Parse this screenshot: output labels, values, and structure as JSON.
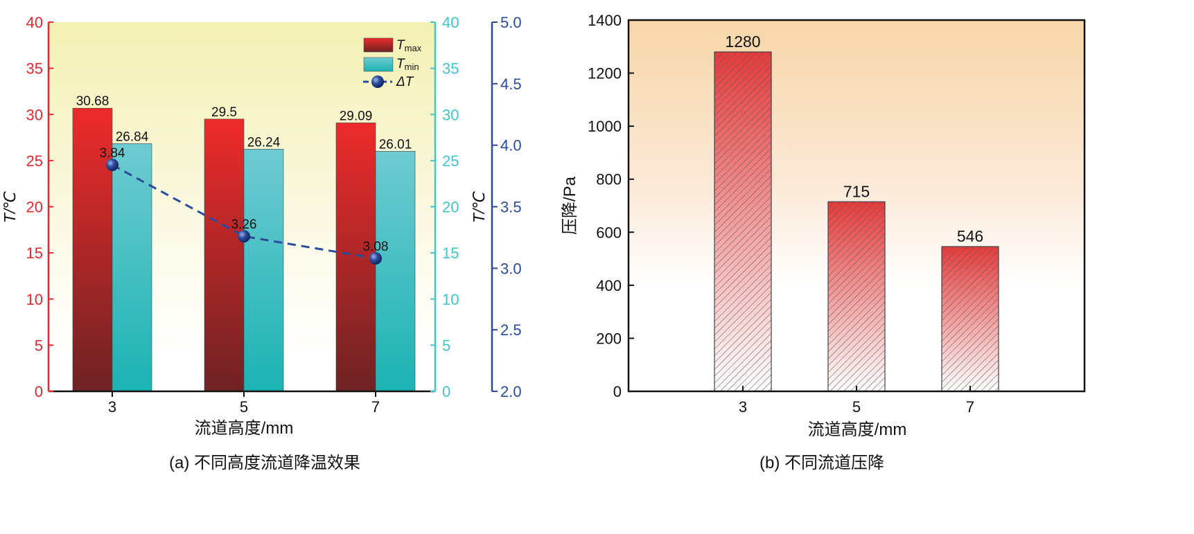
{
  "colors": {
    "tmax_top": "#ee2b2b",
    "tmax_bottom": "#6e2224",
    "tmin_top": "#6ecbd2",
    "tmin_bottom": "#1cb3b3",
    "delta": "#2a4b9c",
    "left_axis": "#e8262e",
    "mid_axis": "#3ec6c9",
    "right_axis": "#2a4b9c",
    "bg_a_top": "#f3f0b3",
    "bg_b_top": "#f7d6a8",
    "pressure_top": "#e53a3a"
  },
  "chart_data": [
    {
      "type": "bar",
      "panel": "a",
      "caption": "(a) 不同高度流道降温效果",
      "xlabel": "流道高度/mm",
      "ylabel_left": "T/℃",
      "ylabel_right": "T/℃",
      "categories": [
        "3",
        "5",
        "7"
      ],
      "ylim_left": [
        0,
        40
      ],
      "ylim_mid": [
        0,
        40
      ],
      "ylim_right": [
        2.0,
        5.0
      ],
      "yticks_left": [
        "0",
        "5",
        "10",
        "15",
        "20",
        "25",
        "30",
        "35",
        "40"
      ],
      "yticks_mid": [
        "0",
        "5",
        "10",
        "15",
        "20",
        "25",
        "30",
        "35",
        "40"
      ],
      "yticks_right": [
        "2.0",
        "2.5",
        "3.0",
        "3.5",
        "4.0",
        "4.5",
        "5.0"
      ],
      "series": [
        {
          "name": "Tmax",
          "legend_main": "T",
          "legend_sub": "max",
          "values": [
            30.68,
            29.5,
            29.09
          ],
          "labels": [
            "30.68",
            "29.5",
            "29.09"
          ]
        },
        {
          "name": "Tmin",
          "legend_main": "T",
          "legend_sub": "min",
          "values": [
            26.84,
            26.24,
            26.01
          ],
          "labels": [
            "26.84",
            "26.24",
            "26.01"
          ]
        },
        {
          "name": "ΔT",
          "legend_main": "ΔT",
          "type": "line",
          "axis": "right",
          "values": [
            3.84,
            3.26,
            3.08
          ],
          "labels": [
            "3.84",
            "3.26",
            "3.08"
          ]
        }
      ]
    },
    {
      "type": "bar",
      "panel": "b",
      "caption": "(b) 不同流道压降",
      "xlabel": "流道高度/mm",
      "ylabel": "压降/Pa",
      "categories": [
        "3",
        "5",
        "7"
      ],
      "ylim": [
        0,
        1400
      ],
      "yticks": [
        "0",
        "200",
        "400",
        "600",
        "800",
        "1000",
        "1200",
        "1400"
      ],
      "series": [
        {
          "name": "压降",
          "values": [
            1280,
            715,
            546
          ],
          "labels": [
            "1280",
            "715",
            "546"
          ]
        }
      ]
    }
  ]
}
